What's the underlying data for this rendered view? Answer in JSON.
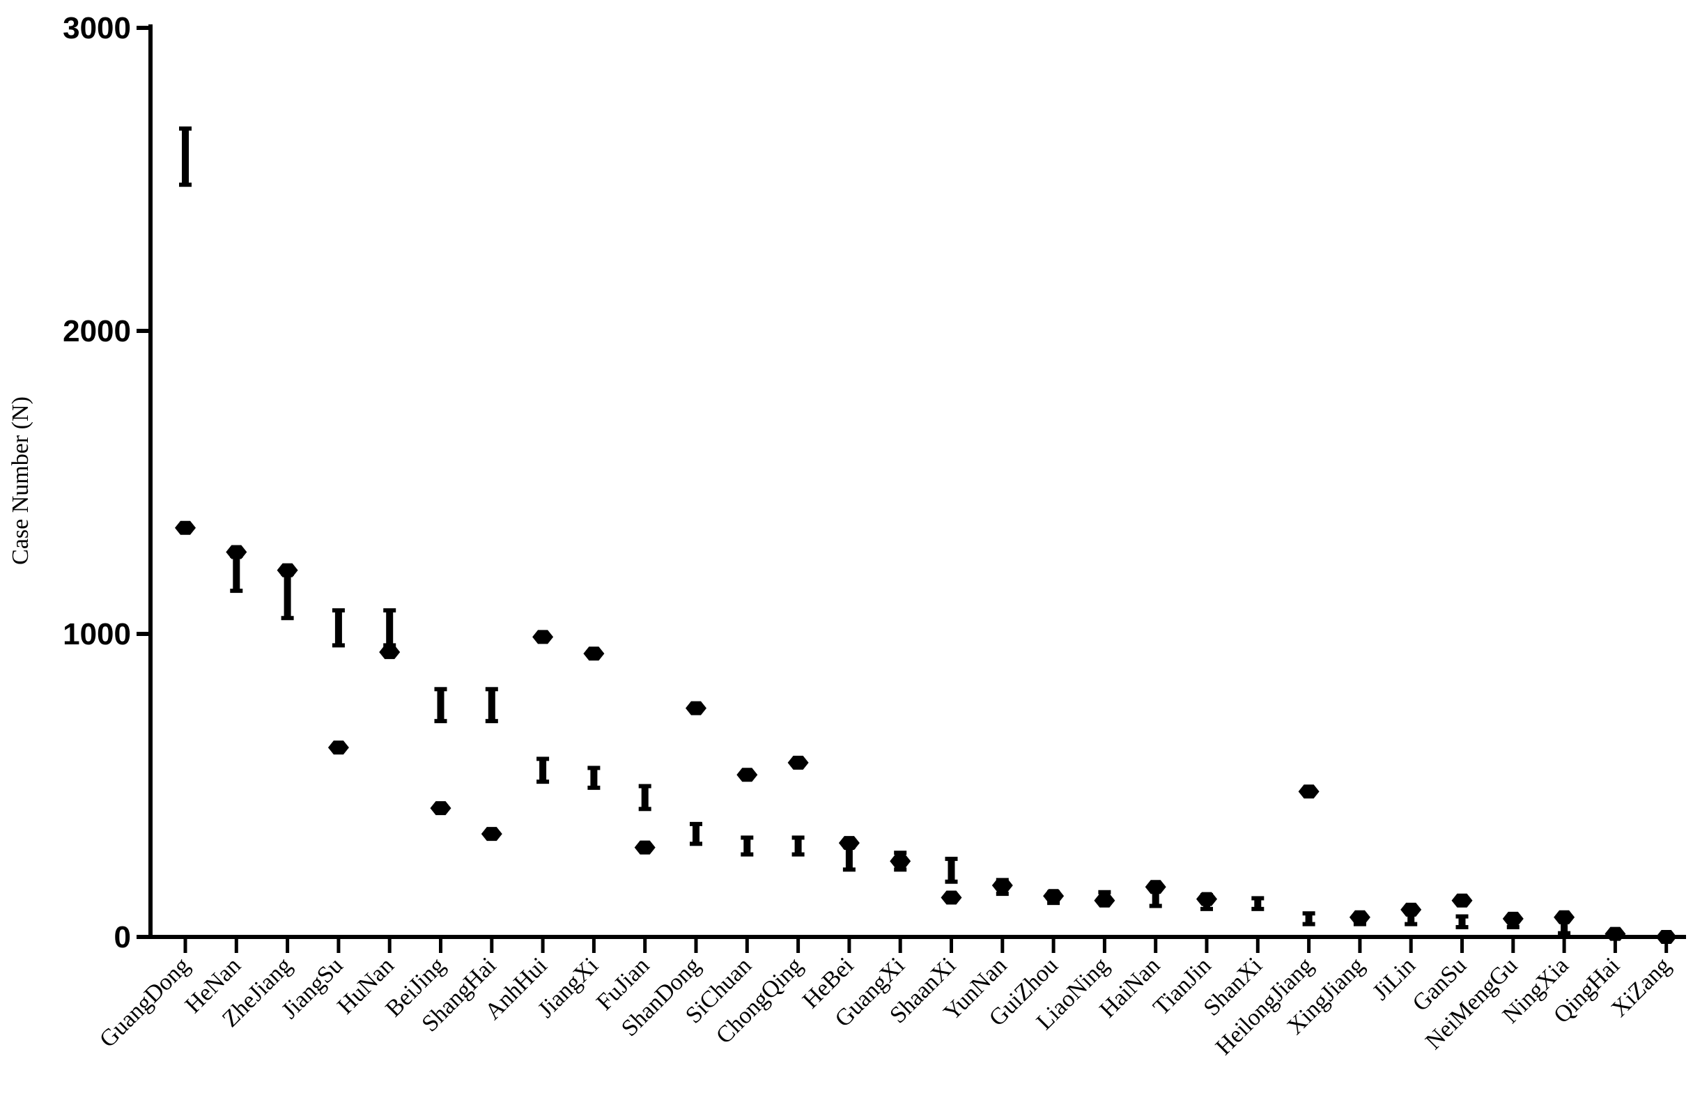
{
  "chart_data": {
    "type": "scatter",
    "title": "",
    "xlabel": "",
    "ylabel": "Case Number (N)",
    "ylim": [
      0,
      3000
    ],
    "yticks": [
      "0",
      "1000",
      "2000",
      "3000"
    ],
    "grid": false,
    "legend": "none",
    "categories": [
      "GuangDong",
      "HeNan",
      "ZheJiang",
      "JiangSu",
      "HuNan",
      "BeiJing",
      "ShangHai",
      "AnhHui",
      "JiangXi",
      "FuJian",
      "ShanDong",
      "SiChuan",
      "ChongQing",
      "HeBei",
      "GuangXi",
      "ShaanXi",
      "YunNan",
      "GuiZhou",
      "LiaoNing",
      "HaiNan",
      "TianJin",
      "ShanXi",
      "HeilongJiang",
      "XingJiang",
      "JiLin",
      "GanSu",
      "NeiMengGu",
      "NingXia",
      "QingHai",
      "XiZang"
    ],
    "series": [
      {
        "marker": "dot",
        "values": [
          1350,
          1270,
          1210,
          625,
          940,
          425,
          340,
          990,
          935,
          295,
          755,
          535,
          575,
          310,
          250,
          130,
          170,
          135,
          120,
          165,
          125,
          null,
          480,
          65,
          90,
          120,
          60,
          65,
          10,
          0
        ]
      },
      {
        "marker": "interval",
        "values": [
          [
            2480,
            2670
          ],
          [
            1140,
            1260
          ],
          [
            1050,
            1200
          ],
          [
            960,
            1080
          ],
          [
            960,
            1080
          ],
          [
            710,
            820
          ],
          [
            710,
            820
          ],
          [
            510,
            590
          ],
          [
            490,
            560
          ],
          [
            420,
            500
          ],
          [
            305,
            375
          ],
          [
            270,
            330
          ],
          [
            270,
            330
          ],
          [
            220,
            300
          ],
          [
            220,
            280
          ],
          [
            180,
            260
          ],
          [
            140,
            190
          ],
          [
            110,
            150
          ],
          [
            110,
            150
          ],
          [
            100,
            160
          ],
          [
            90,
            140
          ],
          [
            90,
            130
          ],
          [
            40,
            80
          ],
          [
            40,
            70
          ],
          [
            40,
            90
          ],
          [
            30,
            70
          ],
          [
            30,
            70
          ],
          [
            10,
            60
          ],
          [
            0,
            20
          ],
          [
            0,
            10
          ]
        ]
      }
    ],
    "colors": {
      "marker": "#000000",
      "axis": "#000000"
    }
  }
}
